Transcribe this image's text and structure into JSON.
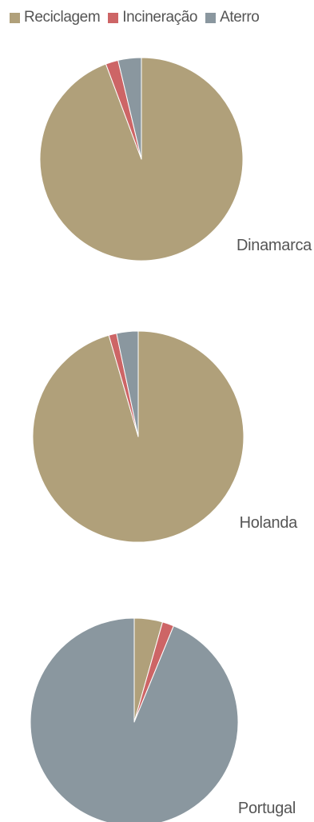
{
  "legend": {
    "items": [
      {
        "label": "Reciclagem",
        "color": "#b0a07a"
      },
      {
        "label": "Incineração",
        "color": "#cd6566"
      },
      {
        "label": "Aterro",
        "color": "#8a979f"
      }
    ]
  },
  "chart_data": [
    {
      "type": "pie",
      "label": "Dinamarca",
      "categories": [
        "Reciclagem",
        "Incineração",
        "Aterro"
      ],
      "values": [
        94.3,
        2.0,
        3.7
      ]
    },
    {
      "type": "pie",
      "label": "Holanda",
      "categories": [
        "Reciclagem",
        "Incineração",
        "Aterro"
      ],
      "values": [
        95.5,
        1.2,
        3.3
      ]
    },
    {
      "type": "pie",
      "label": "Portugal",
      "categories": [
        "Reciclagem",
        "Incineração",
        "Aterro"
      ],
      "values": [
        4.4,
        1.8,
        93.8
      ]
    }
  ]
}
